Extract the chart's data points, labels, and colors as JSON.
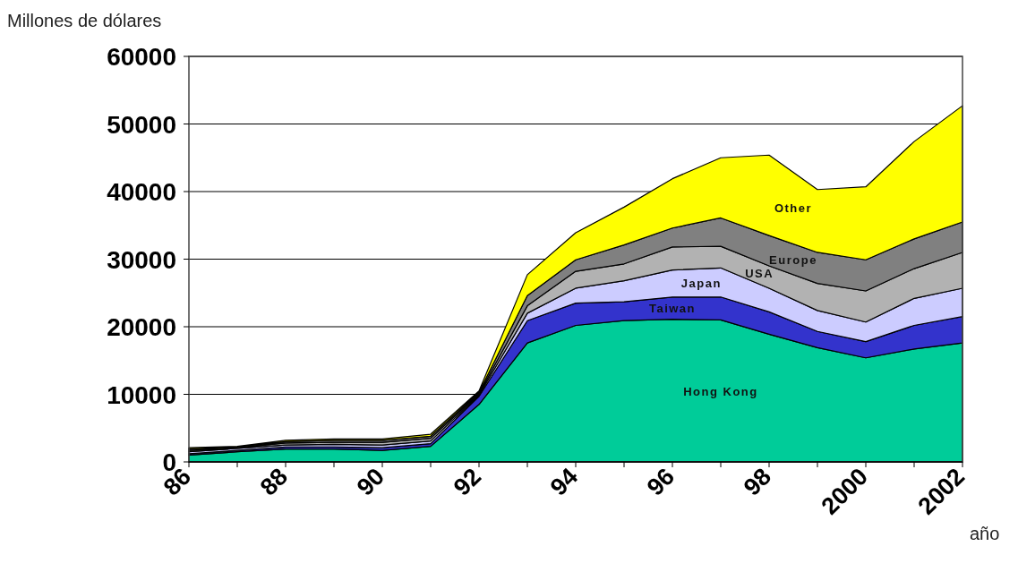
{
  "chart_data": {
    "type": "area",
    "stacked": true,
    "ylabel": "Millones de dólares",
    "xlabel": "año",
    "x": [
      1986,
      1987,
      1988,
      1989,
      1990,
      1991,
      1992,
      1993,
      1994,
      1995,
      1996,
      1997,
      1998,
      1999,
      2000,
      2001,
      2002
    ],
    "xlim": [
      1986,
      2002
    ],
    "xticks": [
      {
        "value": 1986,
        "label": "86"
      },
      {
        "value": 1987,
        "label": null
      },
      {
        "value": 1988,
        "label": "88"
      },
      {
        "value": 1989,
        "label": null
      },
      {
        "value": 1990,
        "label": "90"
      },
      {
        "value": 1991,
        "label": null
      },
      {
        "value": 1992,
        "label": "92"
      },
      {
        "value": 1993,
        "label": null
      },
      {
        "value": 1994,
        "label": "94"
      },
      {
        "value": 1995,
        "label": null
      },
      {
        "value": 1996,
        "label": "96"
      },
      {
        "value": 1997,
        "label": null
      },
      {
        "value": 1998,
        "label": "98"
      },
      {
        "value": 1999,
        "label": null
      },
      {
        "value": 2000,
        "label": "2000"
      },
      {
        "value": 2001,
        "label": null
      },
      {
        "value": 2002,
        "label": "2002"
      }
    ],
    "ylim": [
      0,
      60000
    ],
    "yticks": [
      0,
      10000,
      20000,
      30000,
      40000,
      50000,
      60000
    ],
    "grid": "y",
    "legend": false,
    "series": [
      {
        "name": "Hong Kong",
        "color": "#00cc99",
        "values": [
          1000,
          1500,
          1900,
          1900,
          1700,
          2300,
          8500,
          17600,
          20200,
          20900,
          21100,
          21000,
          18900,
          16900,
          15400,
          16700,
          17600
        ]
      },
      {
        "name": "Taiwan",
        "color": "#3333cc",
        "values": [
          200,
          200,
          300,
          300,
          400,
          400,
          1200,
          3300,
          3300,
          2800,
          3300,
          3400,
          3300,
          2400,
          2400,
          3500,
          3900
        ]
      },
      {
        "name": "Japan",
        "color": "#ccccff",
        "values": [
          300,
          300,
          300,
          400,
          400,
          400,
          200,
          1100,
          2200,
          3100,
          4000,
          4300,
          3500,
          3100,
          2900,
          4000,
          4200
        ]
      },
      {
        "name": "USA",
        "color": "#b2b2b2",
        "values": [
          200,
          100,
          300,
          300,
          400,
          400,
          200,
          1100,
          2500,
          2500,
          3400,
          3200,
          3300,
          4000,
          4600,
          4400,
          5300
        ]
      },
      {
        "name": "Europe",
        "color": "#808080",
        "values": [
          200,
          100,
          200,
          300,
          300,
          300,
          200,
          1500,
          1700,
          2800,
          2800,
          4200,
          4500,
          4600,
          4600,
          4400,
          4500
        ]
      },
      {
        "name": "Other",
        "color": "#ffff00",
        "values": [
          200,
          100,
          200,
          200,
          200,
          300,
          200,
          3100,
          4000,
          5600,
          7300,
          8900,
          11900,
          9300,
          10800,
          14400,
          17200
        ]
      }
    ]
  }
}
